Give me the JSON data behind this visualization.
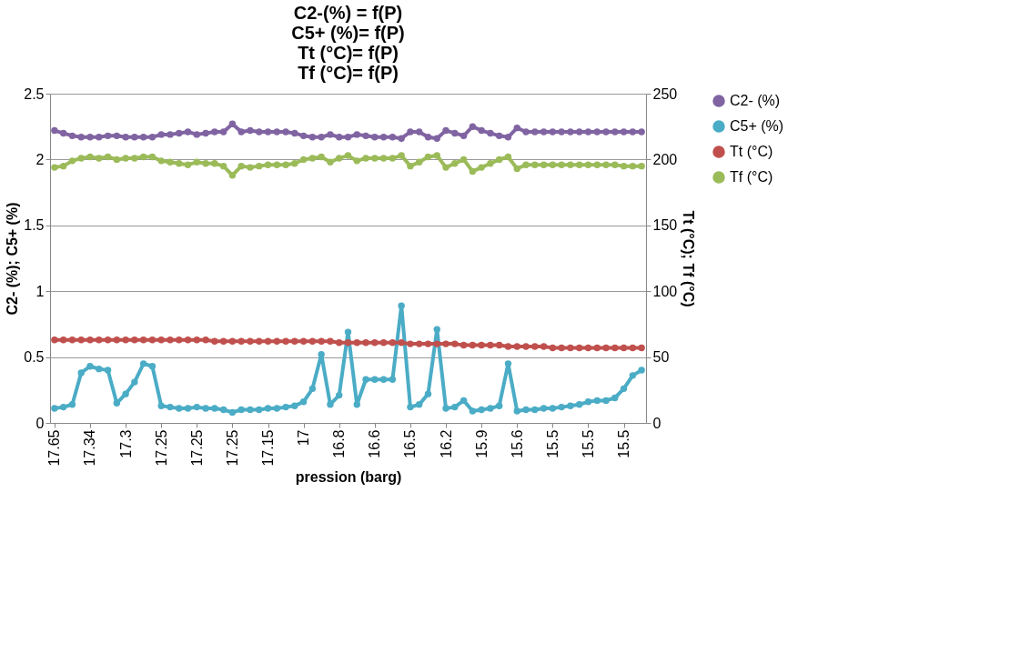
{
  "chart_data": {
    "type": "line",
    "title": "C2-(%) = f(P)\nC5+ (%)= f(P)\nTt (°C)= f(P)\nTf (°C)= f(P)",
    "xlabel": "pression (barg)",
    "ylabel": "C2- (%); C5+ (%)",
    "y2label": "Tt (°C); Tf (°C)",
    "categories": [
      "17.65",
      null,
      null,
      null,
      "17.34",
      null,
      null,
      null,
      "17.3",
      null,
      null,
      null,
      "17.25",
      null,
      null,
      null,
      "17.25",
      null,
      null,
      null,
      "17.25",
      null,
      null,
      null,
      "17.15",
      null,
      null,
      null,
      "17",
      null,
      null,
      null,
      "16.8",
      null,
      null,
      null,
      "16.6",
      null,
      null,
      null,
      "16.5",
      null,
      null,
      null,
      "16.2",
      null,
      null,
      null,
      "15.9",
      null,
      null,
      null,
      "15.6",
      null,
      null,
      null,
      "15.5",
      null,
      null,
      null,
      "15.5",
      null,
      null,
      null,
      "15.5",
      null,
      null
    ],
    "series": [
      {
        "name": "C2- (%)",
        "color": "#8064a2",
        "values": [
          2.22,
          2.2,
          2.18,
          2.17,
          2.17,
          2.17,
          2.18,
          2.18,
          2.17,
          2.17,
          2.17,
          2.17,
          2.19,
          2.19,
          2.2,
          2.21,
          2.19,
          2.2,
          2.21,
          2.21,
          2.27,
          2.21,
          2.22,
          2.21,
          2.21,
          2.21,
          2.21,
          2.2,
          2.18,
          2.17,
          2.17,
          2.19,
          2.17,
          2.17,
          2.19,
          2.18,
          2.17,
          2.17,
          2.17,
          2.16,
          2.21,
          2.21,
          2.17,
          2.16,
          2.22,
          2.2,
          2.18,
          2.25,
          2.22,
          2.2,
          2.18,
          2.17,
          2.24,
          2.21,
          2.21,
          2.21,
          2.21,
          2.21,
          2.21,
          2.21,
          2.21,
          2.21,
          2.21,
          2.21,
          2.21,
          2.21,
          2.21
        ]
      },
      {
        "name": "C5+ (%)",
        "color": "#4bacc6",
        "values": [
          0.11,
          0.12,
          0.14,
          0.38,
          0.43,
          0.41,
          0.4,
          0.15,
          0.22,
          0.31,
          0.45,
          0.43,
          0.13,
          0.12,
          0.11,
          0.11,
          0.12,
          0.11,
          0.11,
          0.1,
          0.08,
          0.1,
          0.1,
          0.1,
          0.11,
          0.11,
          0.12,
          0.13,
          0.16,
          0.26,
          0.52,
          0.14,
          0.21,
          0.69,
          0.14,
          0.33,
          0.33,
          0.33,
          0.33,
          0.89,
          0.12,
          0.14,
          0.22,
          0.71,
          0.11,
          0.12,
          0.17,
          0.09,
          0.1,
          0.11,
          0.13,
          0.45,
          0.09,
          0.1,
          0.1,
          0.11,
          0.11,
          0.12,
          0.13,
          0.14,
          0.16,
          0.17,
          0.17,
          0.19,
          0.26,
          0.36,
          0.4
        ]
      },
      {
        "name": "Tt (°C)",
        "color": "#c0504d",
        "axis": "y2",
        "values": [
          63,
          63,
          63,
          63,
          63,
          63,
          63,
          63,
          63,
          63,
          63,
          63,
          63,
          63,
          63,
          63,
          63,
          63,
          62,
          62,
          62,
          62,
          62,
          62,
          62,
          62,
          62,
          62,
          62,
          62,
          62,
          62,
          61,
          61,
          61,
          61,
          61,
          61,
          61,
          61,
          60,
          60,
          60,
          60,
          60,
          60,
          59,
          59,
          59,
          59,
          59,
          58,
          58,
          58,
          58,
          58,
          57,
          57,
          57,
          57,
          57,
          57,
          57,
          57,
          57,
          57,
          57
        ]
      },
      {
        "name": "Tf (°C)",
        "color": "#9bbb59",
        "axis": "y2",
        "values": [
          194,
          195,
          199,
          201,
          202,
          201,
          202,
          200,
          201,
          201,
          202,
          202,
          199,
          198,
          197,
          196,
          198,
          197,
          197,
          195,
          188,
          195,
          194,
          195,
          196,
          196,
          196,
          197,
          200,
          201,
          202,
          198,
          201,
          203,
          199,
          201,
          201,
          201,
          201,
          203,
          195,
          198,
          202,
          203,
          194,
          197,
          200,
          191,
          194,
          197,
          200,
          202,
          193,
          196,
          196,
          196,
          196,
          196,
          196,
          196,
          196,
          196,
          196,
          196,
          195,
          195,
          195
        ]
      }
    ],
    "ylim": [
      0,
      2.5
    ],
    "yticks": [
      0,
      0.5,
      1,
      1.5,
      2,
      2.5
    ],
    "y2lim": [
      0,
      250
    ],
    "y2ticks": [
      0,
      50,
      100,
      150,
      200,
      250
    ],
    "grid": "y",
    "legend": "top right",
    "marker": "circle",
    "line_style": "solid"
  }
}
